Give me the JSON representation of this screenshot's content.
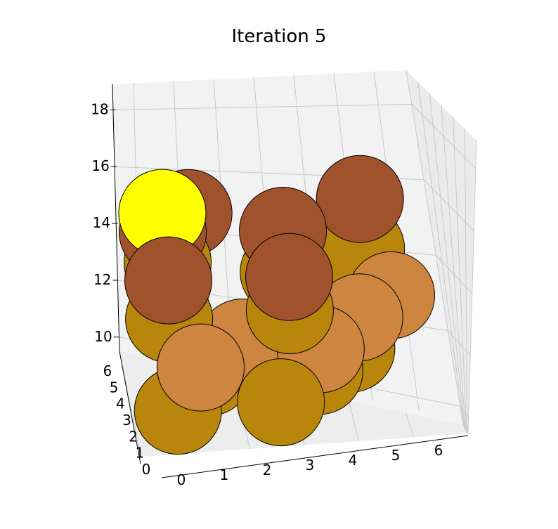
{
  "chart_data": {
    "type": "scatter3d",
    "title": "Iteration 5",
    "xlabel": "",
    "ylabel": "",
    "zlabel": "",
    "x_ticks": [
      "0",
      "1",
      "2",
      "3",
      "4",
      "5",
      "6"
    ],
    "y_ticks": [
      "0",
      "1",
      "2",
      "3",
      "4",
      "5",
      "6"
    ],
    "z_ticks": [
      "10",
      "12",
      "14",
      "16",
      "18"
    ],
    "xlim": [
      -0.8,
      6.8
    ],
    "ylim": [
      -0.8,
      6.8
    ],
    "zlim": [
      9.5,
      18.9
    ],
    "grid": true,
    "point_colors": {
      "gold": "#b8860b",
      "peru": "#cd853f",
      "sienna": "#a0522d",
      "yellow": "#ffff00"
    },
    "points": [
      {
        "x": 1.0,
        "y": 2.0,
        "z": 16.0,
        "color": "sienna"
      },
      {
        "x": 5.0,
        "y": 2.0,
        "z": 14.2,
        "color": "gold"
      },
      {
        "x": 5.0,
        "y": 2.0,
        "z": 16.0,
        "color": "sienna"
      },
      {
        "x": 3.0,
        "y": 0.8,
        "z": 14.0,
        "color": "gold"
      },
      {
        "x": 3.0,
        "y": 0.8,
        "z": 15.5,
        "color": "sienna"
      },
      {
        "x": 5.6,
        "y": 1.5,
        "z": 12.6,
        "color": "peru"
      },
      {
        "x": 4.8,
        "y": 1.2,
        "z": 12.0,
        "color": "peru"
      },
      {
        "x": 4.6,
        "y": 1.2,
        "z": 10.9,
        "color": "gold"
      },
      {
        "x": 0.3,
        "y": 0.8,
        "z": 14.7,
        "color": "gold"
      },
      {
        "x": 0.2,
        "y": 0.8,
        "z": 15.8,
        "color": "sienna"
      },
      {
        "x": 0.2,
        "y": 0.8,
        "z": 16.5,
        "color": "yellow"
      },
      {
        "x": 1.8,
        "y": -0.4,
        "z": 12.0,
        "color": "peru"
      },
      {
        "x": 0.1,
        "y": -0.5,
        "z": 13.1,
        "color": "gold"
      },
      {
        "x": 0.1,
        "y": -0.5,
        "z": 14.5,
        "color": "sienna"
      },
      {
        "x": 2.9,
        "y": -0.6,
        "z": 13.1,
        "color": "gold"
      },
      {
        "x": 2.9,
        "y": -0.6,
        "z": 14.3,
        "color": "sienna"
      },
      {
        "x": 1.2,
        "y": 0.8,
        "z": 10.6,
        "color": "gold"
      },
      {
        "x": 0.7,
        "y": -1.2,
        "z": 11.5,
        "color": "peru"
      },
      {
        "x": 3.7,
        "y": 0.3,
        "z": 10.5,
        "color": "gold"
      },
      {
        "x": 3.6,
        "y": -0.6,
        "z": 11.6,
        "color": "peru"
      },
      {
        "x": 0.2,
        "y": -0.9,
        "z": 9.9,
        "color": "gold"
      },
      {
        "x": 2.6,
        "y": -0.9,
        "z": 9.9,
        "color": "gold"
      }
    ]
  }
}
